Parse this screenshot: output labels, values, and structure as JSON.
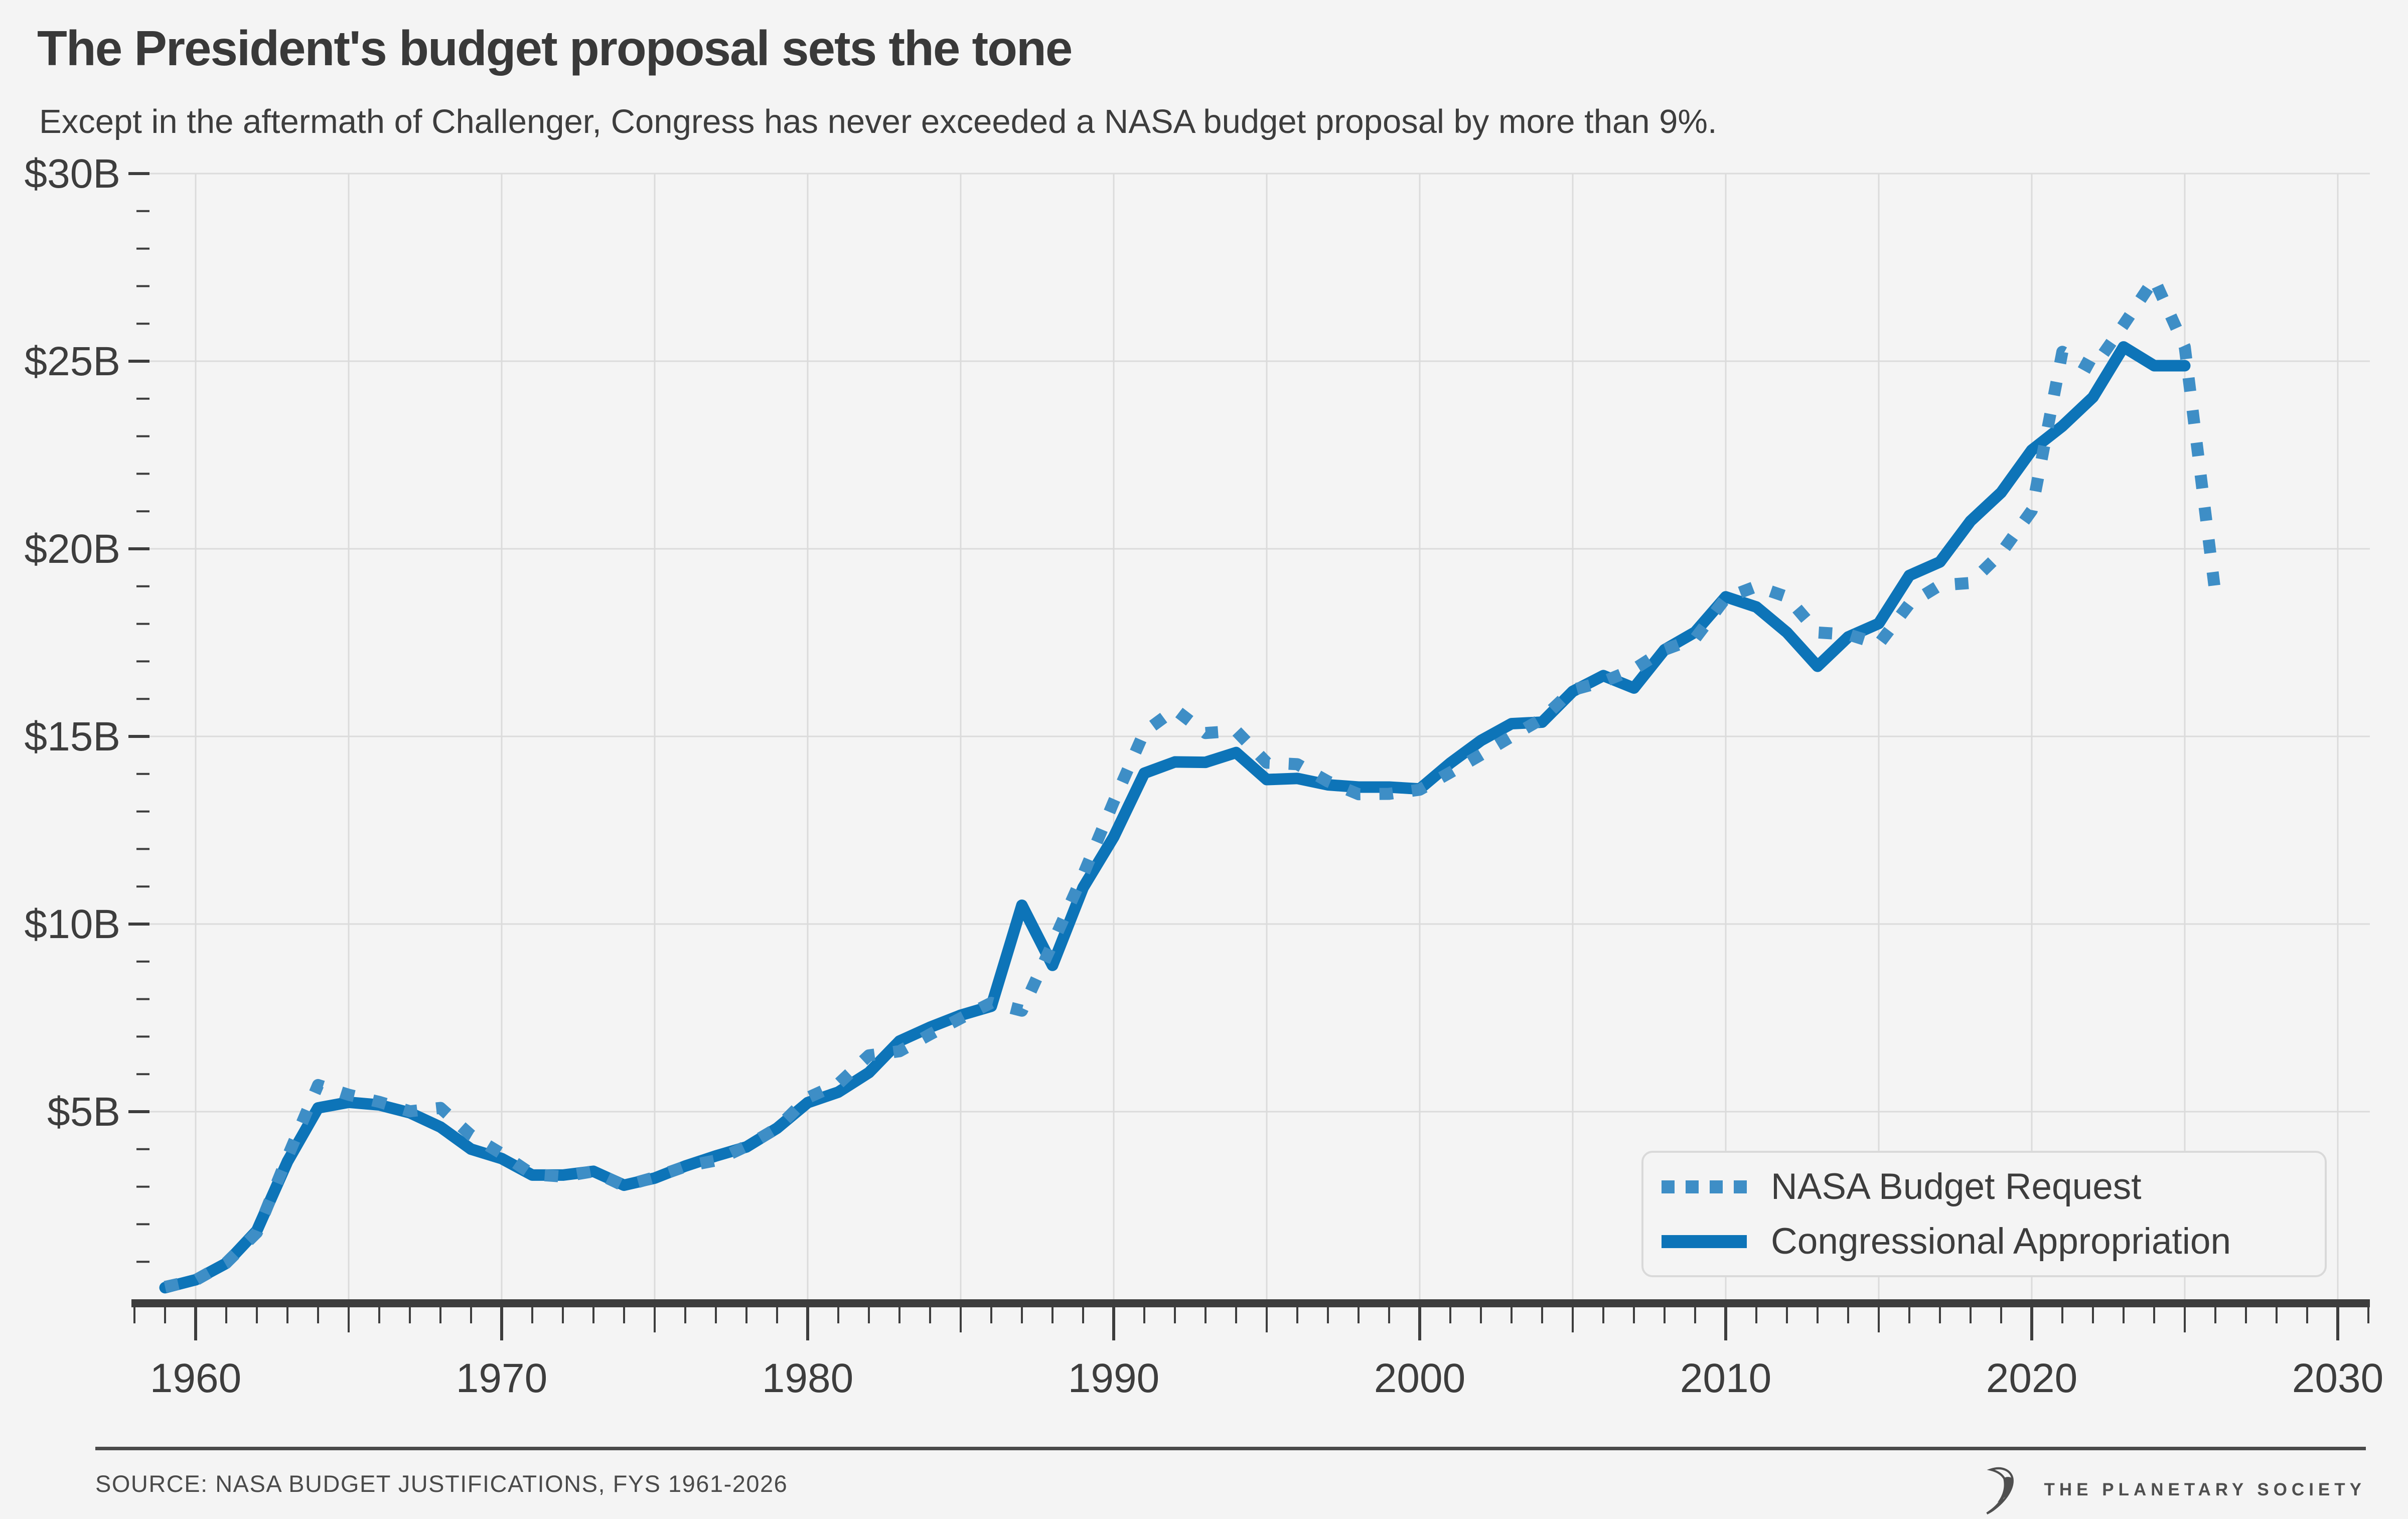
{
  "header": {
    "title": "The President's budget proposal sets the tone",
    "subtitle": "Except in the aftermath of Challenger, Congress has never exceeded a NASA budget proposal by more than 9%."
  },
  "footer": {
    "source": "SOURCE: NASA BUDGET JUSTIFICATIONS, FYS 1961-2026",
    "logo_text": "THE PLANETARY SOCIETY"
  },
  "colors": {
    "background": "#f4f4f4",
    "grid": "#dbdbdb",
    "axis": "#3d3d3d",
    "text": "#3d3d3d",
    "request_dotted": "#3e8ec6",
    "appropriation_solid": "#0d74b8"
  },
  "chart_data": {
    "type": "line",
    "title": "The President's budget proposal sets the tone",
    "subtitle": "Except in the aftermath of Challenger, Congress has never exceeded a NASA budget proposal by more than 9%.",
    "xlabel": "",
    "ylabel": "",
    "grid": true,
    "legend_position": "lower right",
    "x_axis": {
      "range": [
        1958,
        2031
      ],
      "tick_values": [
        1960,
        1970,
        1980,
        1990,
        2000,
        2010,
        2020,
        2030
      ],
      "tick_labels": [
        "1960",
        "1970",
        "1980",
        "1990",
        "2000",
        "2010",
        "2020",
        "2030"
      ],
      "minor_tick_step": 1,
      "mid_tick_step": 5,
      "gridline_step": 5
    },
    "y_axis": {
      "unit": "billions of dollars",
      "range": [
        0,
        30
      ],
      "tick_values": [
        5,
        10,
        15,
        20,
        25,
        30
      ],
      "tick_labels": [
        "$5B",
        "$10B",
        "$15B",
        "$20B",
        "$25B",
        "$30B"
      ],
      "minor_tick_step": 1,
      "gridline_step": 5
    },
    "series": [
      {
        "name": "NASA Budget Request",
        "style": "dotted",
        "color": "#3e8ec6",
        "start_year": 1959,
        "values": [
          0.33,
          0.51,
          0.97,
          1.78,
          3.79,
          5.71,
          5.45,
          5.26,
          5.01,
          5.1,
          4.37,
          3.88,
          3.33,
          3.27,
          3.41,
          3.02,
          3.25,
          3.54,
          3.7,
          4.08,
          4.56,
          5.37,
          5.74,
          6.5,
          6.61,
          7.06,
          7.49,
          7.9,
          7.69,
          9.48,
          11.31,
          13.26,
          15.12,
          15.72,
          15.09,
          15.15,
          14.3,
          14.26,
          13.8,
          13.46,
          13.47,
          13.58,
          14.04,
          14.51,
          15.0,
          15.47,
          16.24,
          16.46,
          16.79,
          17.31,
          17.61,
          18.69,
          19.0,
          18.72,
          17.77,
          17.72,
          17.46,
          18.53,
          19.03,
          19.09,
          19.89,
          21.02,
          25.25,
          24.8,
          25.97,
          27.19,
          25.38,
          18.8
        ]
      },
      {
        "name": "Congressional Appropriation",
        "style": "solid",
        "color": "#0d74b8",
        "start_year": 1959,
        "values": [
          0.31,
          0.52,
          0.96,
          1.83,
          3.67,
          5.1,
          5.25,
          5.18,
          4.97,
          4.59,
          4.0,
          3.75,
          3.31,
          3.31,
          3.41,
          3.04,
          3.23,
          3.55,
          3.82,
          4.06,
          4.56,
          5.24,
          5.52,
          6.04,
          6.88,
          7.25,
          7.57,
          7.81,
          10.5,
          8.9,
          10.97,
          12.32,
          14.02,
          14.32,
          14.31,
          14.57,
          13.85,
          13.88,
          13.71,
          13.65,
          13.65,
          13.6,
          14.29,
          14.89,
          15.34,
          15.38,
          16.2,
          16.62,
          16.29,
          17.31,
          17.78,
          18.72,
          18.45,
          17.77,
          16.87,
          17.65,
          18.01,
          19.29,
          19.65,
          20.74,
          21.5,
          22.63,
          23.27,
          24.04,
          25.38,
          24.88,
          24.88
        ]
      }
    ]
  }
}
